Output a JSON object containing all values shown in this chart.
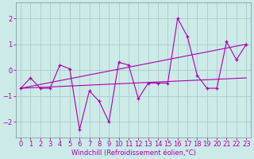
{
  "x": [
    0,
    1,
    2,
    3,
    4,
    5,
    6,
    7,
    8,
    9,
    10,
    11,
    12,
    13,
    14,
    15,
    16,
    17,
    18,
    19,
    20,
    21,
    22,
    23
  ],
  "y_main": [
    -0.7,
    -0.3,
    -0.7,
    -0.7,
    0.2,
    0.05,
    -2.3,
    -0.8,
    -1.2,
    -2.0,
    0.3,
    0.2,
    -1.1,
    -0.5,
    -0.5,
    -0.5,
    2.0,
    1.3,
    -0.2,
    -0.7,
    -0.7,
    1.1,
    0.4,
    1.0
  ],
  "trend1_start": -0.7,
  "trend1_end": 1.0,
  "trend2_start": -0.7,
  "trend2_end": -0.3,
  "line_color": "#aa00aa",
  "bg_color": "#cceae8",
  "grid_color": "#aacccc",
  "xlabel": "Windchill (Refroidissement éolien,°C)",
  "ylim": [
    -2.6,
    2.6
  ],
  "xlim": [
    -0.5,
    23.5
  ],
  "yticks": [
    -2,
    -1,
    0,
    1,
    2
  ],
  "xticks": [
    0,
    1,
    2,
    3,
    4,
    5,
    6,
    7,
    8,
    9,
    10,
    11,
    12,
    13,
    14,
    15,
    16,
    17,
    18,
    19,
    20,
    21,
    22,
    23
  ],
  "xlabel_fontsize": 6.0,
  "tick_fontsize": 6.0
}
